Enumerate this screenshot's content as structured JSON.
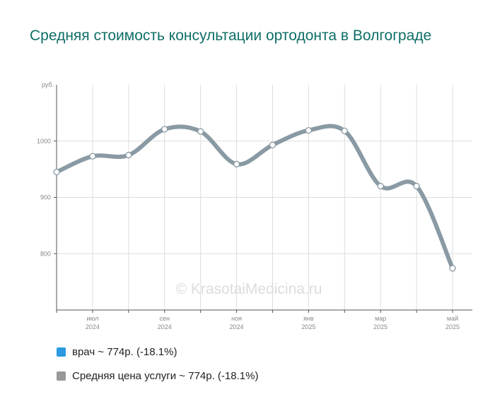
{
  "title": "Средняя стоимость консультации ортодонта в Волгограде",
  "watermark": "© KrasotaiMedicina.ru",
  "colors": {
    "title": "#0e6e66",
    "line": "#8a9aa4",
    "point_fill": "#ffffff",
    "point_stroke": "#8a9aa4",
    "grid": "#dddddd"
  },
  "chart_data": {
    "type": "line",
    "title": "Средняя стоимость консультации ортодонта в Волгограде",
    "ylabel": "руб.",
    "xlabel": "",
    "ylim": [
      700,
      1100
    ],
    "yticks": [
      800,
      900,
      1000
    ],
    "grid": true,
    "legend_position": "bottom",
    "x": [
      "2024-06",
      "2024-07",
      "2024-08",
      "2024-09",
      "2024-10",
      "2024-11",
      "2024-12",
      "2025-01",
      "2025-02",
      "2025-03",
      "2025-04",
      "2025-05"
    ],
    "x_tick_labels": [
      {
        "x": "2024-07",
        "month": "июл",
        "year": "2024"
      },
      {
        "x": "2024-09",
        "month": "сен",
        "year": "2024"
      },
      {
        "x": "2024-11",
        "month": "ноя",
        "year": "2024"
      },
      {
        "x": "2025-01",
        "month": "янв",
        "year": "2025"
      },
      {
        "x": "2025-03",
        "month": "мар",
        "year": "2025"
      },
      {
        "x": "2025-05",
        "month": "май",
        "year": "2025"
      }
    ],
    "series": [
      {
        "name": "врач ~ 774р. (-18.1%)",
        "color": "#2b9ae0",
        "values": [
          945,
          973,
          975,
          1021,
          1017,
          959,
          993,
          1019,
          1018,
          920,
          920,
          774
        ]
      },
      {
        "name": "Средняя цена услуги ~ 774р. (-18.1%)",
        "color": "#999999",
        "values": [
          945,
          973,
          975,
          1021,
          1017,
          959,
          993,
          1019,
          1018,
          920,
          920,
          774
        ]
      }
    ]
  }
}
